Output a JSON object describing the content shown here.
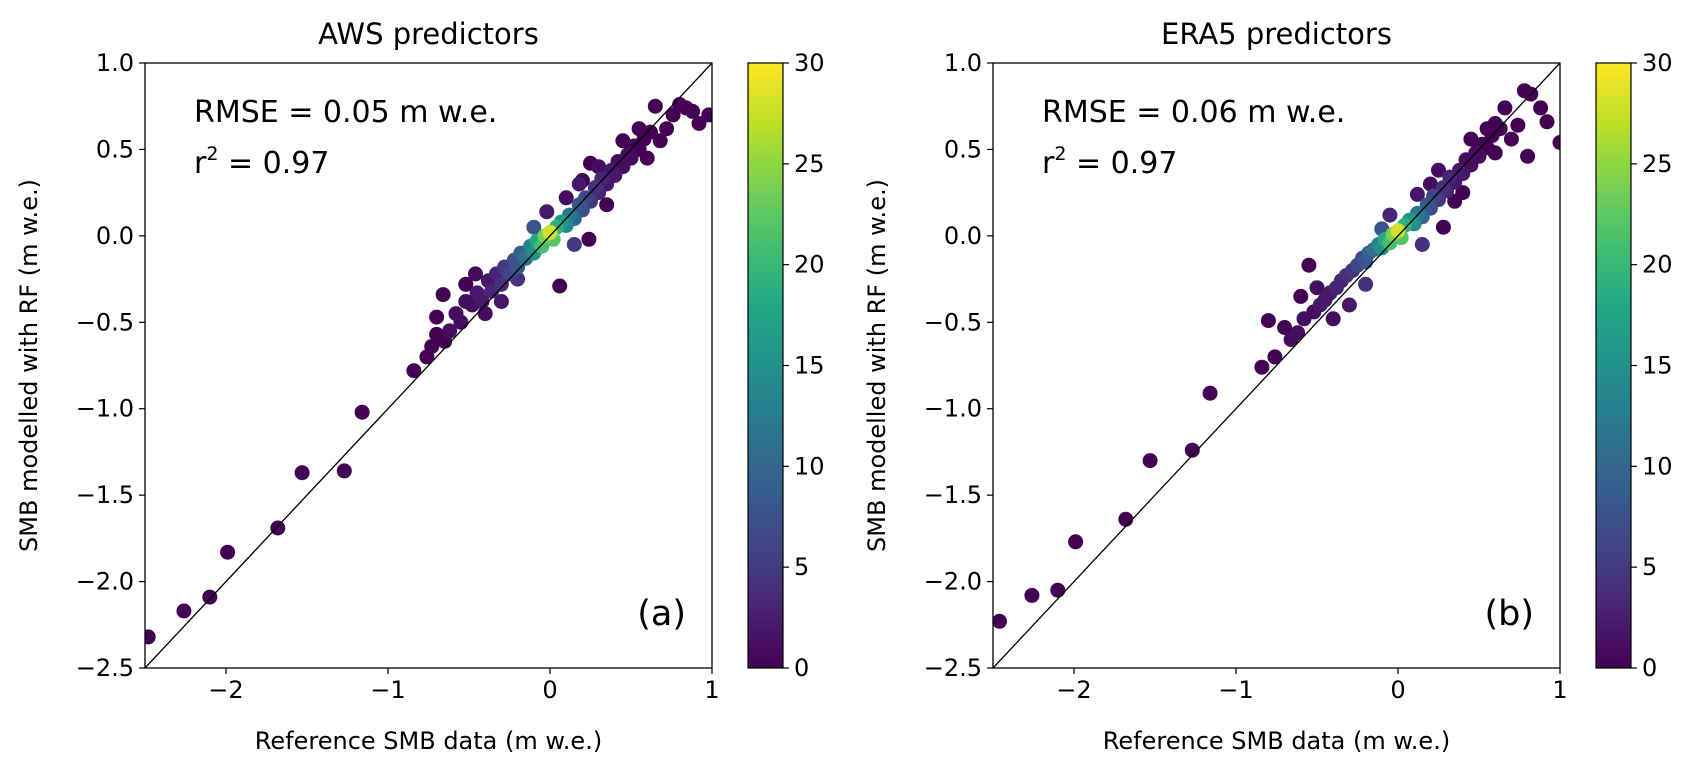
{
  "figure": {
    "ylabel": "SMB modelled with RF (m w.e.)",
    "xlabel": "Reference SMB data (m w.e.)"
  },
  "chart_data": [
    {
      "type": "scatter",
      "title": "AWS predictors",
      "xlabel": "Reference SMB data (m w.e.)",
      "ylabel": "SMB modelled with RF (m w.e.)",
      "xlim": [
        -2.5,
        1.0
      ],
      "ylim": [
        -2.5,
        1.0
      ],
      "xticks": [
        "−2",
        "−1",
        "0",
        "1"
      ],
      "xtick_values": [
        -2,
        -1,
        0,
        1
      ],
      "yticks": [
        "1.0",
        "0.5",
        "0.0",
        "−0.5",
        "−1.0",
        "−1.5",
        "−2.0",
        "−2.5"
      ],
      "ytick_values": [
        1.0,
        0.5,
        0.0,
        -0.5,
        -1.0,
        -1.5,
        -2.0,
        -2.5
      ],
      "rmse_text": "RMSE = 0.05 m w.e.",
      "r2_prefix": "r",
      "r2_sup": "2",
      "r2_value": " = 0.97",
      "panel_label": "(a)",
      "colorbar": {
        "min": 0,
        "max": 30,
        "ticks": [
          "0",
          "5",
          "10",
          "15",
          "20",
          "25",
          "30"
        ],
        "tick_values": [
          0,
          5,
          10,
          15,
          20,
          25,
          30
        ],
        "colormap": "viridis"
      },
      "one_to_one_line": true,
      "points": [
        [
          -2.48,
          -2.32,
          0
        ],
        [
          -2.26,
          -2.17,
          0
        ],
        [
          -2.1,
          -2.09,
          0
        ],
        [
          -1.99,
          -1.83,
          0
        ],
        [
          -1.68,
          -1.69,
          0
        ],
        [
          -1.53,
          -1.37,
          0
        ],
        [
          -1.27,
          -1.36,
          0
        ],
        [
          -1.16,
          -1.02,
          0
        ],
        [
          -0.84,
          -0.78,
          0
        ],
        [
          -0.76,
          -0.7,
          0
        ],
        [
          -0.73,
          -0.64,
          0
        ],
        [
          -0.7,
          -0.57,
          0
        ],
        [
          -0.65,
          -0.61,
          0
        ],
        [
          -0.62,
          -0.55,
          1
        ],
        [
          -0.7,
          -0.47,
          0
        ],
        [
          -0.66,
          -0.34,
          0
        ],
        [
          -0.58,
          -0.45,
          1
        ],
        [
          -0.55,
          -0.5,
          1
        ],
        [
          -0.52,
          -0.38,
          1
        ],
        [
          -0.48,
          -0.4,
          1
        ],
        [
          -0.45,
          -0.33,
          2
        ],
        [
          -0.42,
          -0.38,
          2
        ],
        [
          -0.38,
          -0.26,
          2
        ],
        [
          -0.36,
          -0.32,
          3
        ],
        [
          -0.33,
          -0.22,
          3
        ],
        [
          -0.3,
          -0.28,
          4
        ],
        [
          -0.52,
          -0.28,
          0
        ],
        [
          -0.46,
          -0.22,
          1
        ],
        [
          -0.28,
          -0.18,
          5
        ],
        [
          -0.25,
          -0.22,
          6
        ],
        [
          -0.22,
          -0.14,
          7
        ],
        [
          -0.2,
          -0.18,
          8
        ],
        [
          -0.18,
          -0.1,
          9
        ],
        [
          -0.15,
          -0.13,
          11
        ],
        [
          -0.12,
          -0.06,
          13
        ],
        [
          -0.1,
          -0.1,
          15
        ],
        [
          -0.08,
          -0.03,
          18
        ],
        [
          -0.05,
          -0.06,
          21
        ],
        [
          -0.03,
          0.0,
          24
        ],
        [
          0.0,
          0.02,
          28
        ],
        [
          0.02,
          -0.02,
          22
        ],
        [
          0.04,
          0.05,
          19
        ],
        [
          0.07,
          0.08,
          16
        ],
        [
          0.1,
          0.06,
          14
        ],
        [
          0.12,
          0.12,
          12
        ],
        [
          0.15,
          0.1,
          10
        ],
        [
          0.18,
          0.18,
          8
        ],
        [
          0.2,
          0.15,
          7
        ],
        [
          0.22,
          0.22,
          6
        ],
        [
          0.25,
          0.2,
          5
        ],
        [
          0.28,
          0.28,
          4
        ],
        [
          0.3,
          0.25,
          3
        ],
        [
          0.32,
          0.33,
          3
        ],
        [
          0.35,
          0.3,
          2
        ],
        [
          0.38,
          0.38,
          2
        ],
        [
          0.4,
          0.35,
          2
        ],
        [
          0.42,
          0.43,
          1
        ],
        [
          0.45,
          0.4,
          1
        ],
        [
          0.48,
          0.47,
          1
        ],
        [
          0.5,
          0.45,
          1
        ],
        [
          0.52,
          0.52,
          0
        ],
        [
          0.55,
          0.5,
          0
        ],
        [
          0.58,
          0.56,
          0
        ],
        [
          0.6,
          0.45,
          0
        ],
        [
          0.62,
          0.6,
          0
        ],
        [
          0.65,
          0.75,
          0
        ],
        [
          0.68,
          0.55,
          0
        ],
        [
          0.72,
          0.62,
          0
        ],
        [
          0.76,
          0.7,
          0
        ],
        [
          0.8,
          0.76,
          0
        ],
        [
          0.84,
          0.74,
          0
        ],
        [
          0.88,
          0.72,
          0
        ],
        [
          0.92,
          0.65,
          0
        ],
        [
          0.98,
          0.7,
          0
        ],
        [
          0.06,
          -0.29,
          0
        ],
        [
          0.24,
          -0.02,
          0
        ],
        [
          0.2,
          0.32,
          0
        ],
        [
          -0.02,
          0.14,
          2
        ],
        [
          0.1,
          0.22,
          1
        ],
        [
          0.35,
          0.18,
          0
        ],
        [
          0.25,
          0.42,
          0
        ],
        [
          -0.2,
          -0.25,
          4
        ],
        [
          -0.3,
          -0.38,
          2
        ],
        [
          0.15,
          -0.05,
          5
        ],
        [
          0.3,
          0.4,
          1
        ],
        [
          0.45,
          0.55,
          0
        ],
        [
          0.55,
          0.62,
          0
        ],
        [
          -0.4,
          -0.45,
          1
        ],
        [
          0.18,
          0.3,
          2
        ],
        [
          -0.1,
          0.05,
          8
        ]
      ]
    },
    {
      "type": "scatter",
      "title": "ERA5 predictors",
      "xlabel": "Reference SMB data (m w.e.)",
      "ylabel": "SMB modelled with RF (m w.e.)",
      "xlim": [
        -2.5,
        1.0
      ],
      "ylim": [
        -2.5,
        1.0
      ],
      "xticks": [
        "−2",
        "−1",
        "0",
        "1"
      ],
      "xtick_values": [
        -2,
        -1,
        0,
        1
      ],
      "yticks": [
        "1.0",
        "0.5",
        "0.0",
        "−0.5",
        "−1.0",
        "−1.5",
        "−2.0",
        "−2.5"
      ],
      "ytick_values": [
        1.0,
        0.5,
        0.0,
        -0.5,
        -1.0,
        -1.5,
        -2.0,
        -2.5
      ],
      "rmse_text": "RMSE = 0.06 m w.e.",
      "r2_prefix": "r",
      "r2_sup": "2",
      "r2_value": " = 0.97",
      "panel_label": "(b)",
      "colorbar": {
        "min": 0,
        "max": 30,
        "ticks": [
          "0",
          "5",
          "10",
          "15",
          "20",
          "25",
          "30"
        ],
        "tick_values": [
          0,
          5,
          10,
          15,
          20,
          25,
          30
        ],
        "colormap": "viridis"
      },
      "one_to_one_line": true,
      "points": [
        [
          -2.46,
          -2.23,
          0
        ],
        [
          -2.26,
          -2.08,
          0
        ],
        [
          -2.1,
          -2.05,
          0
        ],
        [
          -1.99,
          -1.77,
          0
        ],
        [
          -1.68,
          -1.64,
          0
        ],
        [
          -1.53,
          -1.3,
          0
        ],
        [
          -1.27,
          -1.24,
          0
        ],
        [
          -1.16,
          -0.91,
          0
        ],
        [
          -0.84,
          -0.76,
          0
        ],
        [
          -0.8,
          -0.49,
          0
        ],
        [
          -0.76,
          -0.7,
          0
        ],
        [
          -0.7,
          -0.53,
          0
        ],
        [
          -0.66,
          -0.6,
          1
        ],
        [
          -0.62,
          -0.56,
          1
        ],
        [
          -0.58,
          -0.48,
          1
        ],
        [
          -0.55,
          -0.17,
          0
        ],
        [
          -0.52,
          -0.44,
          1
        ],
        [
          -0.48,
          -0.4,
          2
        ],
        [
          -0.45,
          -0.37,
          2
        ],
        [
          -0.42,
          -0.33,
          2
        ],
        [
          -0.38,
          -0.3,
          3
        ],
        [
          -0.35,
          -0.26,
          3
        ],
        [
          -0.32,
          -0.23,
          4
        ],
        [
          -0.6,
          -0.35,
          0
        ],
        [
          -0.5,
          -0.3,
          1
        ],
        [
          -0.28,
          -0.2,
          5
        ],
        [
          -0.25,
          -0.17,
          6
        ],
        [
          -0.22,
          -0.13,
          7
        ],
        [
          -0.2,
          -0.15,
          8
        ],
        [
          -0.18,
          -0.1,
          9
        ],
        [
          -0.15,
          -0.08,
          11
        ],
        [
          -0.12,
          -0.05,
          13
        ],
        [
          -0.1,
          -0.07,
          15
        ],
        [
          -0.08,
          -0.02,
          18
        ],
        [
          -0.05,
          -0.04,
          21
        ],
        [
          -0.03,
          0.01,
          24
        ],
        [
          0.0,
          0.03,
          28
        ],
        [
          0.02,
          -0.01,
          22
        ],
        [
          0.04,
          0.06,
          19
        ],
        [
          0.07,
          0.09,
          16
        ],
        [
          0.1,
          0.07,
          14
        ],
        [
          0.12,
          0.13,
          12
        ],
        [
          0.15,
          0.11,
          10
        ],
        [
          0.18,
          0.18,
          8
        ],
        [
          0.2,
          0.16,
          7
        ],
        [
          0.22,
          0.23,
          6
        ],
        [
          0.25,
          0.21,
          5
        ],
        [
          0.28,
          0.28,
          4
        ],
        [
          0.3,
          0.26,
          3
        ],
        [
          0.32,
          0.34,
          3
        ],
        [
          0.35,
          0.31,
          2
        ],
        [
          0.38,
          0.38,
          2
        ],
        [
          0.4,
          0.36,
          2
        ],
        [
          0.42,
          0.44,
          1
        ],
        [
          0.45,
          0.41,
          1
        ],
        [
          0.48,
          0.48,
          1
        ],
        [
          0.5,
          0.46,
          1
        ],
        [
          0.52,
          0.53,
          0
        ],
        [
          0.55,
          0.51,
          0
        ],
        [
          0.58,
          0.58,
          0
        ],
        [
          0.6,
          0.48,
          0
        ],
        [
          0.63,
          0.62,
          0
        ],
        [
          0.66,
          0.74,
          0
        ],
        [
          0.7,
          0.56,
          0
        ],
        [
          0.74,
          0.64,
          0
        ],
        [
          0.78,
          0.84,
          0
        ],
        [
          0.8,
          0.46,
          0
        ],
        [
          0.82,
          0.82,
          0
        ],
        [
          0.88,
          0.74,
          0
        ],
        [
          0.92,
          0.66,
          0
        ],
        [
          1.0,
          0.54,
          0
        ],
        [
          0.2,
          0.3,
          1
        ],
        [
          0.35,
          0.2,
          0
        ],
        [
          -0.05,
          0.12,
          3
        ],
        [
          0.12,
          0.24,
          2
        ],
        [
          0.28,
          0.05,
          0
        ],
        [
          0.15,
          -0.05,
          4
        ],
        [
          -0.2,
          -0.28,
          4
        ],
        [
          -0.3,
          -0.4,
          2
        ],
        [
          0.45,
          0.56,
          0
        ],
        [
          0.55,
          0.62,
          0
        ],
        [
          -0.4,
          -0.48,
          1
        ],
        [
          0.25,
          0.38,
          1
        ],
        [
          -0.1,
          0.04,
          8
        ],
        [
          0.4,
          0.25,
          0
        ],
        [
          0.6,
          0.65,
          0
        ]
      ]
    }
  ]
}
